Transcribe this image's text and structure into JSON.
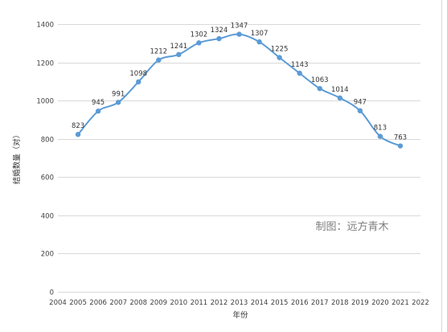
{
  "chart_data": {
    "type": "line",
    "title": "",
    "xlabel": "年份",
    "ylabel": "结婚数量（对）",
    "xlim": [
      2004,
      2022
    ],
    "ylim": [
      0,
      1400
    ],
    "x_ticks": [
      2004,
      2005,
      2006,
      2007,
      2008,
      2009,
      2010,
      2011,
      2012,
      2013,
      2014,
      2015,
      2016,
      2017,
      2018,
      2019,
      2020,
      2021,
      2022
    ],
    "y_ticks": [
      0,
      200,
      400,
      600,
      800,
      1000,
      1200,
      1400
    ],
    "grid": "horizontal",
    "legend": "none",
    "smooth": true,
    "series": [
      {
        "color": "#5b9bd5",
        "x": [
          2005,
          2006,
          2007,
          2008,
          2009,
          2010,
          2011,
          2012,
          2013,
          2014,
          2015,
          2016,
          2017,
          2018,
          2019,
          2020,
          2021
        ],
        "values": [
          823,
          945,
          991,
          1098,
          1212,
          1241,
          1302,
          1324,
          1347,
          1307,
          1225,
          1143,
          1063,
          1014,
          947,
          813,
          763
        ]
      }
    ],
    "data_labels": true,
    "annotation": "制图：远方青木"
  },
  "colors": {
    "line": "#5b9bd5",
    "grid": "#d9d9d9",
    "text": "#404040"
  }
}
